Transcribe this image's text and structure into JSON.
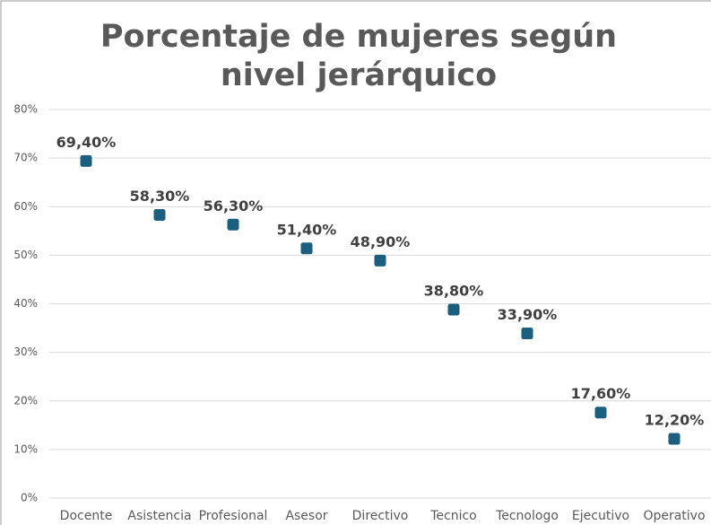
{
  "chart_data": {
    "type": "scatter",
    "title": "Porcentaje de mujeres según nivel jerárquico",
    "categories": [
      "Docente",
      "Asistencia",
      "Profesional",
      "Asesor",
      "Directivo",
      "Tecnico",
      "Tecnologo",
      "Ejecutivo",
      "Operativo"
    ],
    "values": [
      69.4,
      58.3,
      56.3,
      51.4,
      48.9,
      38.8,
      33.9,
      17.6,
      12.2
    ],
    "value_labels": [
      "69,40%",
      "58,30%",
      "56,30%",
      "51,40%",
      "48,90%",
      "38,80%",
      "33,90%",
      "17,60%",
      "12,20%"
    ],
    "color": "#1b5e7e",
    "ylim": [
      0,
      80
    ],
    "yticks": [
      {
        "value": 0,
        "label": "0%"
      },
      {
        "value": 10,
        "label": "10%"
      },
      {
        "value": 20,
        "label": "20%"
      },
      {
        "value": 30,
        "label": "30%"
      },
      {
        "value": 40,
        "label": "40%"
      },
      {
        "value": 50,
        "label": "50%"
      },
      {
        "value": 60,
        "label": "60%"
      },
      {
        "value": 70,
        "label": "70%"
      },
      {
        "value": 80,
        "label": "80%"
      }
    ],
    "grid": true
  }
}
